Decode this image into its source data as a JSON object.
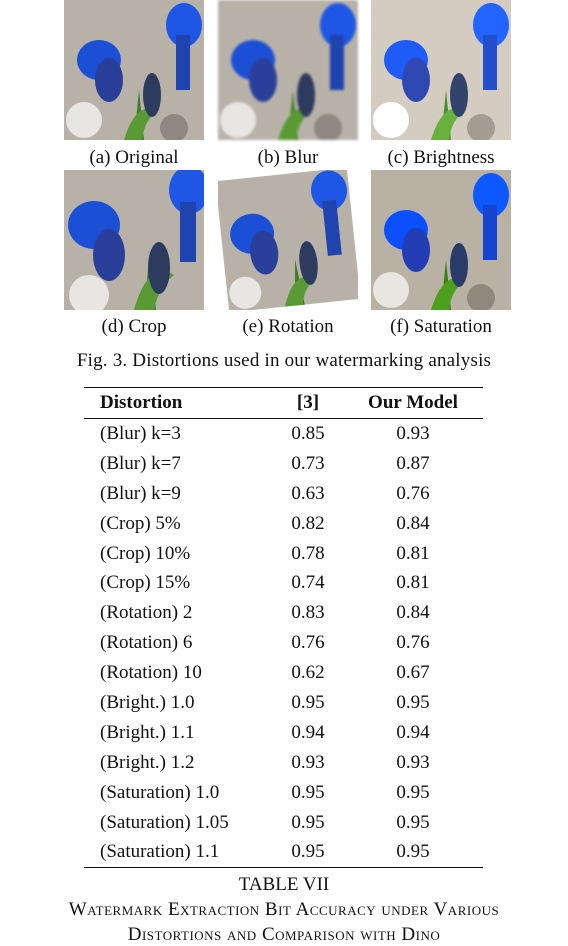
{
  "figure": {
    "images": [
      {
        "caption": "(a) Original"
      },
      {
        "caption": "(b) Blur"
      },
      {
        "caption": "(c) Brightness"
      },
      {
        "caption": "(d) Crop"
      },
      {
        "caption": "(e) Rotation"
      },
      {
        "caption": "(f) Saturation"
      }
    ],
    "caption": "Fig. 3.  Distortions used in our watermarking analysis"
  },
  "table": {
    "headers": [
      "Distortion",
      "[3]",
      "Our Model"
    ],
    "rows": [
      [
        "(Blur) k=3",
        "0.85",
        "0.93"
      ],
      [
        "(Blur) k=7",
        "0.73",
        "0.87"
      ],
      [
        "(Blur) k=9",
        "0.63",
        "0.76"
      ],
      [
        "(Crop) 5%",
        "0.82",
        "0.84"
      ],
      [
        "(Crop) 10%",
        "0.78",
        "0.81"
      ],
      [
        "(Crop) 15%",
        "0.74",
        "0.81"
      ],
      [
        "(Rotation) 2",
        "0.83",
        "0.84"
      ],
      [
        "(Rotation) 6",
        "0.76",
        "0.76"
      ],
      [
        "(Rotation) 10",
        "0.62",
        "0.67"
      ],
      [
        "(Bright.) 1.0",
        "0.95",
        "0.95"
      ],
      [
        "(Bright.) 1.1",
        "0.94",
        "0.94"
      ],
      [
        "(Bright.) 1.2",
        "0.93",
        "0.93"
      ],
      [
        "(Saturation) 1.0",
        "0.95",
        "0.95"
      ],
      [
        "(Saturation) 1.05",
        "0.95",
        "0.95"
      ],
      [
        "(Saturation) 1.1",
        "0.95",
        "0.95"
      ]
    ],
    "title": "TABLE VII",
    "caption_line1": "Watermark Extraction Bit Accuracy under Various",
    "caption_line2": "Distortions and Comparison with Dino"
  }
}
